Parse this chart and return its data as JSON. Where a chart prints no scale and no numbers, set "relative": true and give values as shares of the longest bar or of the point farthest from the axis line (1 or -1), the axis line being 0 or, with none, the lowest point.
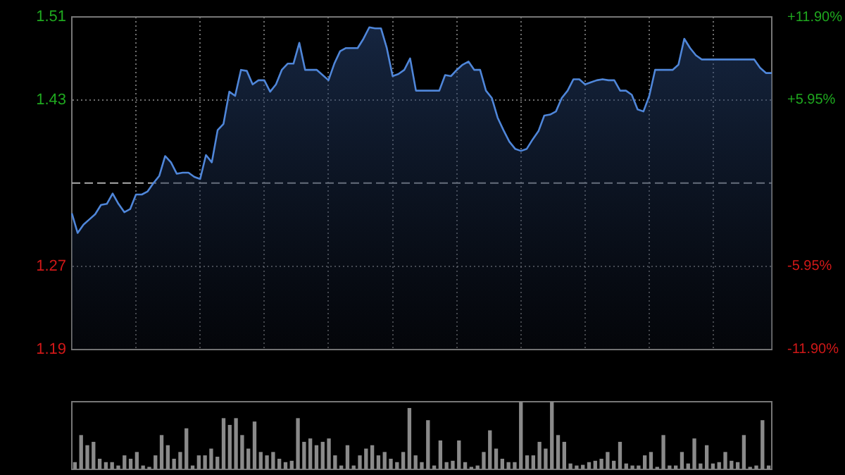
{
  "chart_data": [
    {
      "type": "area",
      "categories": [
        null,
        null,
        null,
        null,
        null,
        null,
        null,
        null,
        null,
        null,
        null,
        null,
        null,
        null,
        null,
        null,
        null,
        null,
        null,
        null,
        null,
        null,
        null,
        null,
        null,
        null,
        null,
        null,
        null,
        null,
        null,
        null,
        null,
        null,
        null,
        null,
        null,
        null,
        null,
        null,
        null,
        null,
        null,
        null,
        null,
        null,
        null,
        null,
        null,
        null,
        null,
        null,
        null,
        null,
        null,
        null,
        null,
        null,
        null,
        null,
        null,
        null,
        null,
        null,
        null,
        null,
        null,
        null,
        null,
        null,
        null,
        null,
        null,
        null,
        null,
        null,
        null,
        null,
        null,
        null,
        null,
        null,
        null,
        null,
        null,
        null,
        null,
        null,
        null,
        null,
        null,
        null,
        null,
        null,
        null,
        null,
        null,
        null,
        null,
        null,
        null,
        null,
        null,
        null,
        null,
        null,
        null,
        null,
        null,
        null,
        null,
        null,
        null,
        null,
        null,
        null,
        null,
        null,
        null,
        null,
        null
      ],
      "series": [
        {
          "color": "#4f86d9",
          "values": [
            1.321,
            1.302,
            1.31,
            1.315,
            1.32,
            1.329,
            1.33,
            1.34,
            1.33,
            1.322,
            1.325,
            1.339,
            1.339,
            1.342,
            1.35,
            1.357,
            1.376,
            1.37,
            1.359,
            1.36,
            1.36,
            1.356,
            1.354,
            1.377,
            1.37,
            1.401,
            1.407,
            1.438,
            1.434,
            1.459,
            1.458,
            1.445,
            1.449,
            1.449,
            1.438,
            1.445,
            1.459,
            1.465,
            1.465,
            1.485,
            1.459,
            1.459,
            1.459,
            1.454,
            1.449,
            1.465,
            1.477,
            1.48,
            1.48,
            1.48,
            1.489,
            1.5,
            1.499,
            1.499,
            1.48,
            1.453,
            1.455,
            1.459,
            1.47,
            1.439,
            1.439,
            1.439,
            1.439,
            1.439,
            1.454,
            1.453,
            1.459,
            1.464,
            1.467,
            1.459,
            1.459,
            1.439,
            1.432,
            1.413,
            1.401,
            1.39,
            1.383,
            1.381,
            1.383,
            1.392,
            1.4,
            1.415,
            1.416,
            1.419,
            1.432,
            1.439,
            1.45,
            1.45,
            1.445,
            1.447,
            1.449,
            1.45,
            1.449,
            1.449,
            1.439,
            1.439,
            1.435,
            1.421,
            1.419,
            1.434,
            1.459,
            1.459,
            1.459,
            1.459,
            1.464,
            1.489,
            1.48,
            1.473,
            1.469,
            1.469,
            1.469,
            1.469,
            1.469,
            1.469,
            1.469,
            1.469,
            1.469,
            1.469,
            1.461,
            1.456,
            1.456
          ]
        }
      ],
      "ylim": [
        1.19,
        1.51
      ],
      "yticks": [
        1.19,
        1.27,
        1.43,
        1.51
      ],
      "y2lim": [
        -11.9,
        11.9
      ],
      "y2ticks": [
        {
          "value": -11.9,
          "label": "-11.90%"
        },
        {
          "value": -5.95,
          "label": "-5.95%"
        },
        {
          "value": 5.95,
          "label": "+5.95%"
        },
        {
          "value": 11.9,
          "label": "+11.90%"
        }
      ],
      "ref_lines": [
        {
          "axis": "y",
          "value": 1.35,
          "line_style": "dashed"
        }
      ],
      "grid": true
    },
    {
      "type": "bar",
      "relative": true,
      "color": "#8a8a8a",
      "categories": [
        null,
        null,
        null,
        null,
        null,
        null,
        null,
        null,
        null,
        null,
        null,
        null,
        null,
        null,
        null,
        null,
        null,
        null,
        null,
        null,
        null,
        null,
        null,
        null,
        null,
        null,
        null,
        null,
        null,
        null,
        null,
        null,
        null,
        null,
        null,
        null,
        null,
        null,
        null,
        null,
        null,
        null,
        null,
        null,
        null,
        null,
        null,
        null,
        null,
        null,
        null,
        null,
        null,
        null,
        null,
        null,
        null,
        null,
        null,
        null,
        null,
        null,
        null,
        null,
        null,
        null,
        null,
        null,
        null,
        null,
        null,
        null,
        null,
        null,
        null,
        null,
        null,
        null,
        null,
        null,
        null,
        null,
        null,
        null,
        null,
        null,
        null,
        null,
        null,
        null,
        null,
        null,
        null,
        null,
        null,
        null,
        null,
        null,
        null,
        null,
        null,
        null,
        null,
        null,
        null,
        null,
        null,
        null,
        null,
        null,
        null,
        null,
        null
      ],
      "values": [
        0.1,
        0.5,
        0.35,
        0.4,
        0.15,
        0.1,
        0.1,
        0.05,
        0.2,
        0.15,
        0.25,
        0.05,
        0.03,
        0.2,
        0.5,
        0.35,
        0.15,
        0.25,
        0.6,
        0.05,
        0.2,
        0.2,
        0.3,
        0.18,
        0.75,
        0.65,
        0.75,
        0.5,
        0.3,
        0.7,
        0.25,
        0.2,
        0.25,
        0.15,
        0.1,
        0.12,
        0.75,
        0.4,
        0.45,
        0.35,
        0.4,
        0.45,
        0.2,
        0.05,
        0.35,
        0.05,
        0.2,
        0.3,
        0.35,
        0.2,
        0.25,
        0.15,
        0.1,
        0.25,
        0.9,
        0.2,
        0.1,
        0.72,
        0.05,
        0.42,
        0.1,
        0.12,
        0.42,
        0.1,
        0.03,
        0.05,
        0.25,
        0.57,
        0.3,
        0.15,
        0.1,
        0.1,
        1,
        0.2,
        0.2,
        0.4,
        0.3,
        1,
        0.5,
        0.4,
        0.08,
        0.05,
        0.06,
        0.1,
        0.12,
        0.15,
        0.25,
        0.12,
        0.4,
        0.08,
        0.05,
        0.05,
        0.2,
        0.25,
        0.03,
        0.5,
        0.05,
        0.05,
        0.25,
        0.08,
        0.45,
        0.08,
        0.35,
        0.08,
        0.1,
        0.25,
        0.12,
        0.1,
        0.5,
        0.03,
        0.05,
        0.72,
        0.05
      ]
    }
  ]
}
